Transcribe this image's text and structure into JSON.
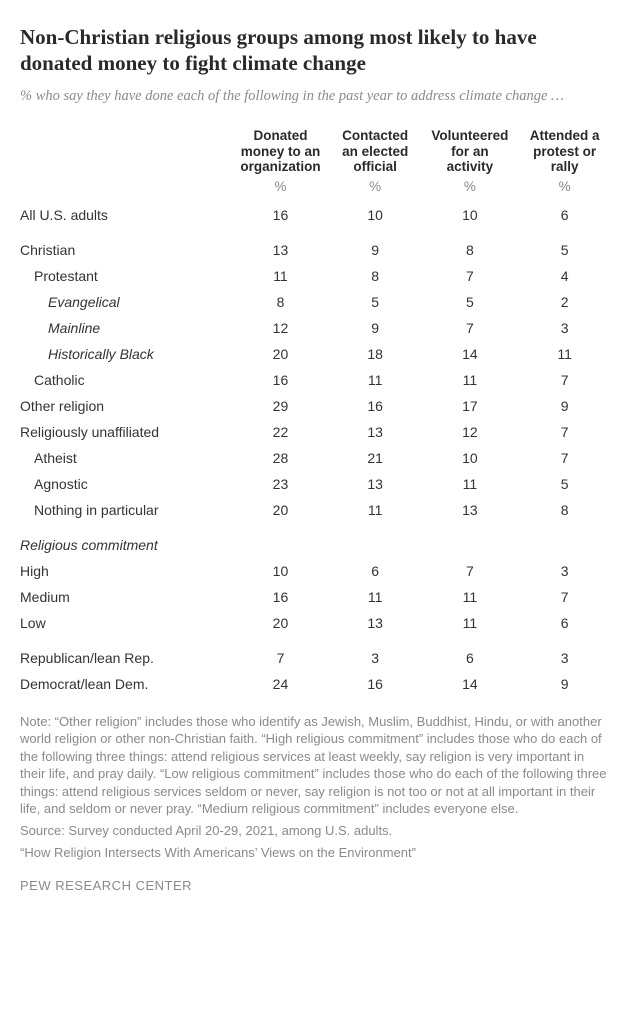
{
  "title": "Non-Christian religious groups among most likely to have donated money to fight climate change",
  "subtitle": "% who say they have done each of the following in the past year to address climate change …",
  "columns": [
    "Donated money to an organization",
    "Contacted an elected official",
    "Volunteered for an activity",
    "Attended a protest or rally"
  ],
  "pct_symbol": "%",
  "rows": [
    {
      "label": "All U.S. adults",
      "vals": [
        16,
        10,
        10,
        6
      ],
      "indent": 0,
      "spacer": false
    },
    {
      "label": "Christian",
      "vals": [
        13,
        9,
        8,
        5
      ],
      "indent": 0,
      "spacer": true
    },
    {
      "label": "Protestant",
      "vals": [
        11,
        8,
        7,
        4
      ],
      "indent": 1,
      "spacer": false
    },
    {
      "label": "Evangelical",
      "vals": [
        8,
        5,
        5,
        2
      ],
      "indent": 2,
      "spacer": false
    },
    {
      "label": "Mainline",
      "vals": [
        12,
        9,
        7,
        3
      ],
      "indent": 2,
      "spacer": false
    },
    {
      "label": "Historically Black",
      "vals": [
        20,
        18,
        14,
        11
      ],
      "indent": 2,
      "spacer": false
    },
    {
      "label": "Catholic",
      "vals": [
        16,
        11,
        11,
        7
      ],
      "indent": 1,
      "spacer": false
    },
    {
      "label": "Other religion",
      "vals": [
        29,
        16,
        17,
        9
      ],
      "indent": 0,
      "spacer": false
    },
    {
      "label": "Religiously unaffiliated",
      "vals": [
        22,
        13,
        12,
        7
      ],
      "indent": 0,
      "spacer": false
    },
    {
      "label": "Atheist",
      "vals": [
        28,
        21,
        10,
        7
      ],
      "indent": 1,
      "spacer": false
    },
    {
      "label": "Agnostic",
      "vals": [
        23,
        13,
        11,
        5
      ],
      "indent": 1,
      "spacer": false
    },
    {
      "label": "Nothing in particular",
      "vals": [
        20,
        11,
        13,
        8
      ],
      "indent": 1,
      "spacer": false
    }
  ],
  "section2_head": "Religious commitment",
  "rows2": [
    {
      "label": "High",
      "vals": [
        10,
        6,
        7,
        3
      ],
      "indent": 0
    },
    {
      "label": "Medium",
      "vals": [
        16,
        11,
        11,
        7
      ],
      "indent": 0
    },
    {
      "label": "Low",
      "vals": [
        20,
        13,
        11,
        6
      ],
      "indent": 0
    }
  ],
  "rows3": [
    {
      "label": "Republican/lean Rep.",
      "vals": [
        7,
        3,
        6,
        3
      ],
      "indent": 0,
      "spacer": true
    },
    {
      "label": "Democrat/lean Dem.",
      "vals": [
        24,
        16,
        14,
        9
      ],
      "indent": 0
    }
  ],
  "note": "Note: “Other religion” includes those who identify as Jewish, Muslim, Buddhist, Hindu, or with another world religion or other non-Christian faith. “High religious commitment” includes those who do each of the following three things: attend religious services at least weekly, say religion is very important in their life, and pray daily. “Low religious commitment” includes those who do each of the following three things: attend religious services seldom or never, say religion is not too or not at all important in their life, and seldom or never pray. “Medium religious commitment” includes everyone else.",
  "source": "Source: Survey conducted April 20-29, 2021, among U.S. adults.",
  "ref": "“How Religion Intersects With Americans’ Views on the Environment”",
  "attrib": "PEW RESEARCH CENTER",
  "colors": {
    "text": "#333333",
    "muted": "#8a8a8a",
    "background": "#ffffff"
  },
  "layout": {
    "label_col_width_pct": 36,
    "data_col_width_pct": 16,
    "font_family_title": "Georgia",
    "font_family_body": "Helvetica/Arial",
    "title_fontsize": 21,
    "subtitle_fontsize": 14.5,
    "table_fontsize": 14,
    "footer_fontsize": 13
  }
}
